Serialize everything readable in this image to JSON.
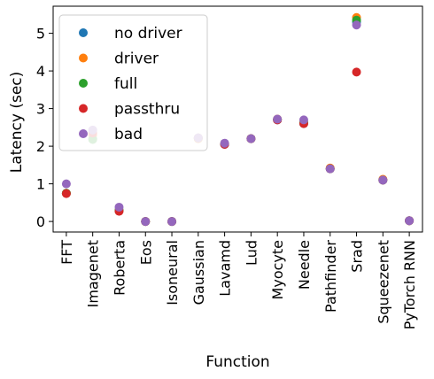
{
  "chart_data": {
    "type": "scatter",
    "title": "",
    "xlabel": "Function",
    "ylabel": "Latency (sec)",
    "categories": [
      "FFT",
      "Imagenet",
      "Roberta",
      "Eos",
      "Isoneural",
      "Gaussian",
      "Lavamd",
      "Lud",
      "Myocyte",
      "Needle",
      "Pathfinder",
      "Srad",
      "Squeezenet",
      "PyTorch RNN"
    ],
    "ylim": [
      -0.28,
      5.72
    ],
    "yticks": [
      0,
      1,
      2,
      3,
      4,
      5
    ],
    "grid": false,
    "legend_position": "upper-left",
    "series": [
      {
        "name": "no driver",
        "color": "#1f77b4",
        "values": [
          0.75,
          2.2,
          0.28,
          0.0,
          0.0,
          2.2,
          2.05,
          2.2,
          2.7,
          2.6,
          1.4,
          5.3,
          1.1,
          0.02
        ]
      },
      {
        "name": "driver",
        "color": "#ff7f0e",
        "values": [
          0.75,
          2.3,
          0.3,
          0.0,
          0.0,
          2.2,
          2.07,
          2.2,
          2.72,
          2.65,
          1.42,
          5.42,
          1.12,
          0.02
        ]
      },
      {
        "name": "full",
        "color": "#2ca02c",
        "values": [
          0.75,
          2.18,
          0.3,
          0.0,
          0.0,
          2.22,
          2.06,
          2.2,
          2.71,
          2.62,
          1.4,
          5.35,
          1.1,
          0.02
        ]
      },
      {
        "name": "passthru",
        "color": "#d62728",
        "values": [
          0.74,
          2.35,
          0.27,
          0.0,
          0.0,
          2.22,
          2.05,
          2.2,
          2.7,
          2.6,
          1.4,
          3.97,
          1.1,
          0.02
        ]
      },
      {
        "name": "bad",
        "color": "#9467bd",
        "values": [
          1.0,
          2.43,
          0.38,
          0.0,
          0.0,
          2.22,
          2.08,
          2.2,
          2.72,
          2.7,
          1.4,
          5.22,
          1.1,
          0.02
        ]
      }
    ]
  }
}
